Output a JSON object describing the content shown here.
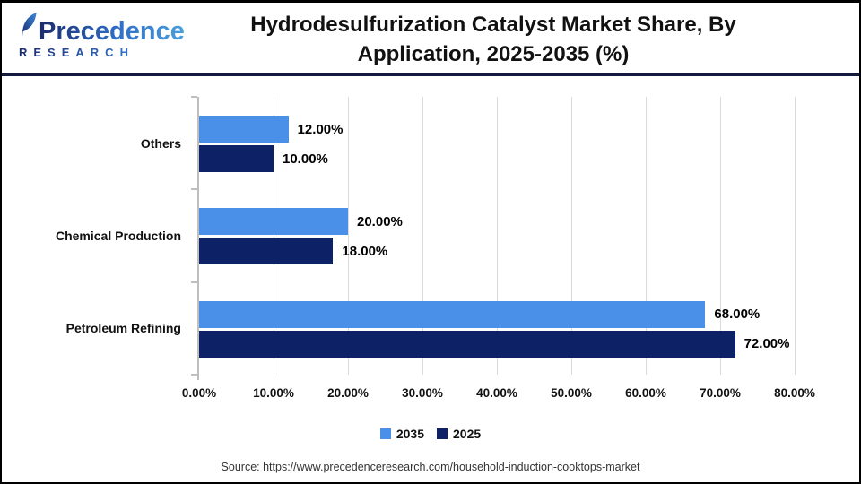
{
  "header": {
    "logo": {
      "brand": "Precedence",
      "sub": "RESEARCH"
    },
    "title_line1": "Hydrodesulfurization Catalyst Market Share, By",
    "title_line2": "Application, 2025-2035 (%)"
  },
  "chart_data": {
    "type": "bar",
    "orientation": "horizontal",
    "title": "Hydrodesulfurization Catalyst Market Share, By Application, 2025-2035 (%)",
    "categories": [
      "Others",
      "Chemical Production",
      "Petroleum Refining"
    ],
    "categories_order": "top-to-bottom",
    "series": [
      {
        "name": "2035",
        "color": "#4a90e8",
        "values": [
          12,
          20,
          68
        ],
        "value_labels": [
          "12.00%",
          "20.00%",
          "68.00%"
        ]
      },
      {
        "name": "2025",
        "color": "#0d2166",
        "values": [
          10,
          18,
          72
        ],
        "value_labels": [
          "10.00%",
          "18.00%",
          "72.00%"
        ]
      }
    ],
    "xlim": [
      0,
      80
    ],
    "x_tick_labels": [
      "0.00%",
      "10.00%",
      "20.00%",
      "30.00%",
      "40.00%",
      "50.00%",
      "60.00%",
      "70.00%",
      "80.00%"
    ],
    "grid": "vertical",
    "legend_position": "bottom",
    "axis_color": "#bfbfbf",
    "gridline_color": "#dadada"
  },
  "footer": {
    "source_text": "Source: https://www.precedenceresearch.com/household-induction-cooktops-market"
  }
}
